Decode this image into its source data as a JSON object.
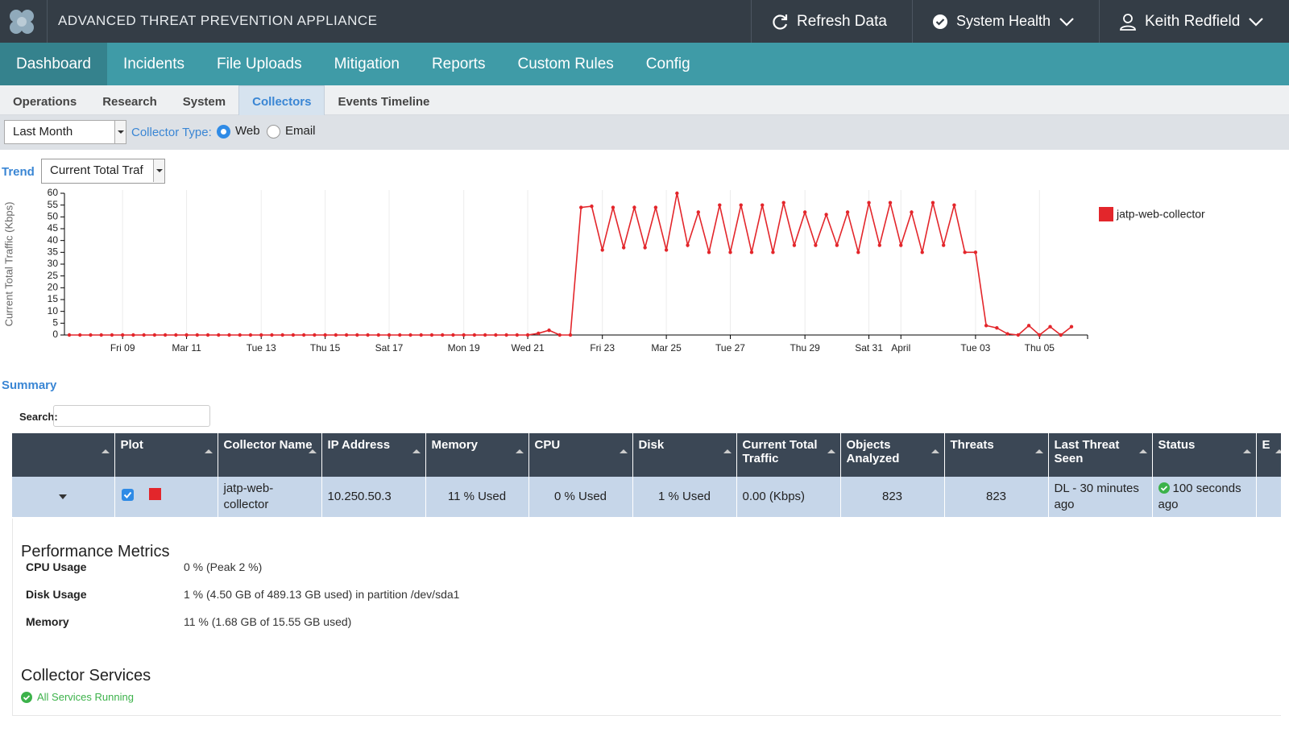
{
  "header": {
    "title": "ADVANCED THREAT PREVENTION APPLIANCE",
    "refresh": "Refresh Data",
    "health": "System Health",
    "user": "Keith Redfield"
  },
  "nav": [
    "Dashboard",
    "Incidents",
    "File Uploads",
    "Mitigation",
    "Reports",
    "Custom Rules",
    "Config"
  ],
  "subtabs": [
    "Operations",
    "Research",
    "System",
    "Collectors",
    "Events Timeline"
  ],
  "filters": {
    "period": "Last Month",
    "collector_type_label": "Collector Type:",
    "options": [
      "Web",
      "Email"
    ]
  },
  "trend": {
    "label": "Trend",
    "select": "Current Total Traf"
  },
  "chart_data": {
    "type": "line",
    "y_label": "Current Total Traffic (Kbps)",
    "categories": [
      null,
      null,
      null,
      null,
      null,
      "Fri 09",
      null,
      null,
      null,
      null,
      null,
      "Mar 11",
      null,
      null,
      null,
      null,
      null,
      null,
      "Tue 13",
      null,
      null,
      null,
      null,
      null,
      "Thu 15",
      null,
      null,
      null,
      null,
      null,
      "Sat 17",
      null,
      null,
      null,
      null,
      null,
      null,
      "Mon 19",
      null,
      null,
      null,
      null,
      null,
      "Wed 21",
      null,
      null,
      null,
      null,
      null,
      null,
      "Fri 23",
      null,
      null,
      null,
      null,
      null,
      "Mar 25",
      null,
      null,
      null,
      null,
      null,
      "Tue 27",
      null,
      null,
      null,
      null,
      null,
      null,
      "Thu 29",
      null,
      null,
      null,
      null,
      null,
      "Sat 31",
      null,
      null,
      "April",
      null,
      null,
      null,
      null,
      null,
      null,
      "Tue 03",
      null,
      null,
      null,
      null,
      null,
      "Thu 05",
      null,
      null,
      null
    ],
    "series": [
      {
        "name": "jatp-web-collector",
        "color": "#e3262b",
        "values": [
          0,
          0,
          0,
          0,
          0,
          0,
          0,
          0,
          0,
          0,
          0,
          0,
          0,
          0,
          0,
          0,
          0,
          0,
          0,
          0,
          0,
          0,
          0,
          0,
          0,
          0,
          0,
          0,
          0,
          0,
          0,
          0,
          0,
          0,
          0,
          0,
          0,
          0,
          0,
          0,
          0,
          0,
          0,
          0,
          0.7,
          2,
          0,
          0,
          54,
          54.5,
          36,
          54,
          37,
          54,
          37,
          54,
          36,
          60,
          38,
          52,
          35,
          55,
          35,
          55,
          35,
          55,
          35,
          56,
          38,
          52,
          38,
          51,
          38,
          52,
          35,
          56,
          38,
          56,
          38,
          52,
          35,
          56,
          38,
          55,
          35,
          35,
          4,
          3,
          0.5,
          0,
          4,
          0,
          3.5,
          0,
          3.5
        ]
      }
    ],
    "ylim": [
      0,
      60
    ],
    "yticks": [
      0,
      5,
      10,
      15,
      20,
      25,
      30,
      35,
      40,
      45,
      50,
      55,
      60
    ],
    "x_grid": true,
    "legend": "right"
  },
  "summary": {
    "title": "Summary",
    "search_label": "Search:"
  },
  "table": {
    "headers": [
      "Plot",
      "Collector Name",
      "IP Address",
      "Memory",
      "CPU",
      "Disk",
      "Current Total Traffic",
      "Objects Analyzed",
      "Threats",
      "Last Threat Seen",
      "Status",
      "E"
    ],
    "rows": [
      [
        "jatp-web-collector",
        "10.250.50.3",
        "11 % Used",
        "0 % Used",
        "1 % Used",
        "0.00 (Kbps)",
        "823",
        "823",
        "DL - 30 minutes ago",
        "100 seconds ago"
      ]
    ]
  },
  "performance": {
    "title": "Performance Metrics",
    "rows": [
      [
        "CPU Usage",
        "0 % (Peak 2 %)"
      ],
      [
        "Disk Usage",
        "1 % (4.50 GB of 489.13 GB used) in partition /dev/sda1"
      ],
      [
        "Memory",
        "11 % (1.68 GB of 15.55 GB used)"
      ]
    ]
  },
  "services": {
    "title": "Collector Services",
    "status": "All Services Running"
  }
}
